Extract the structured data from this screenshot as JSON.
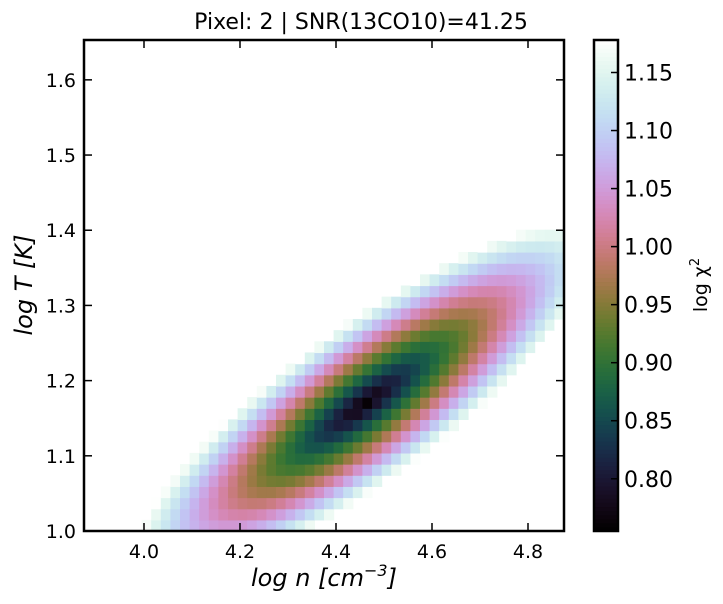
{
  "chart_data": {
    "type": "heatmap",
    "title": "Pixel: 2 | SNR(13CO10)=41.25",
    "xlabel_prefix": "log n [cm",
    "xlabel_sup": "−3",
    "xlabel_suffix": "]",
    "ylabel": "log T [K]",
    "xlim": [
      3.875,
      4.875
    ],
    "ylim": [
      1.0,
      1.653
    ],
    "xticks": [
      4.0,
      4.2,
      4.4,
      4.6,
      4.8
    ],
    "xtick_labels": [
      "4.0",
      "4.2",
      "4.4",
      "4.6",
      "4.8"
    ],
    "yticks": [
      1.0,
      1.1,
      1.2,
      1.3,
      1.4,
      1.5,
      1.6
    ],
    "ytick_labels": [
      "1.0",
      "1.1",
      "1.2",
      "1.3",
      "1.4",
      "1.5",
      "1.6"
    ],
    "grid_cells": [
      50,
      44
    ],
    "minimum": {
      "x": 4.46,
      "y": 1.17,
      "value": 0.755
    },
    "blank_above": 1.18,
    "colormap": "cubehelix",
    "colorbar": {
      "label_prefix": "log χ",
      "label_sup": "2",
      "range": [
        0.755,
        1.178
      ],
      "ticks": [
        0.8,
        0.85,
        0.9,
        0.95,
        1.0,
        1.05,
        1.1,
        1.15
      ],
      "tick_labels": [
        "0.80",
        "0.85",
        "0.90",
        "0.95",
        "1.00",
        "1.05",
        "1.10",
        "1.15"
      ],
      "position": "right"
    },
    "grid": false
  }
}
